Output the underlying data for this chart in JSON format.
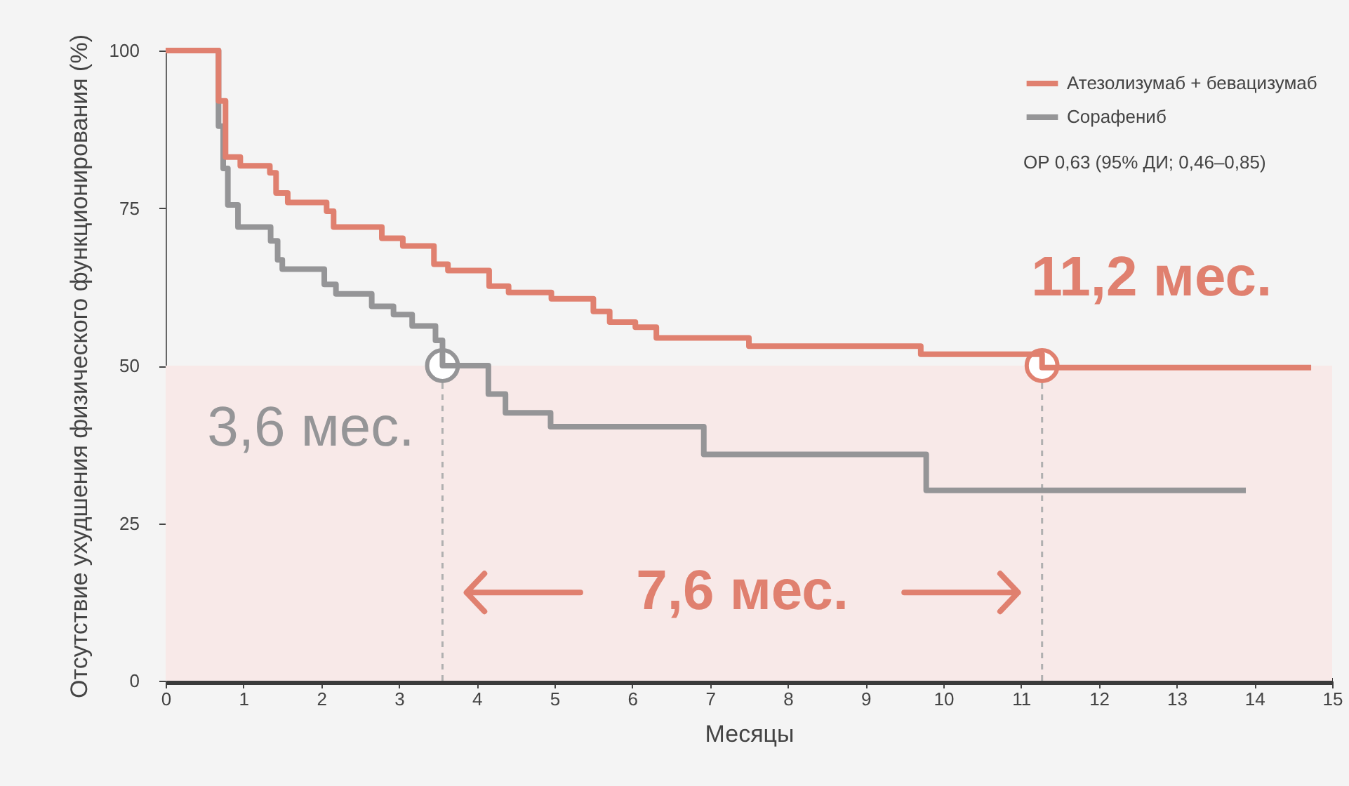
{
  "chart_data": {
    "type": "step",
    "xlabel": "Месяцы",
    "ylabel": "Отсутствие ухудшения физического функционирования (%)",
    "xlim": [
      0,
      15
    ],
    "xticks": [
      0,
      1,
      2,
      3,
      4,
      5,
      6,
      7,
      8,
      9,
      10,
      11,
      12,
      13,
      14,
      15
    ],
    "ylim": [
      0,
      100
    ],
    "yticks": [
      0,
      25,
      50,
      75,
      100
    ],
    "grid": false,
    "legend": "top right",
    "line_style": "solid",
    "marker": "none",
    "series": [
      {
        "name": "Атезолизумаб + бевацизумаб",
        "color": "#e0806f",
        "x": [
          0,
          0.68,
          0.77,
          0.96,
          1.34,
          1.42,
          1.57,
          2.07,
          2.16,
          2.78,
          3.05,
          3.45,
          3.63,
          4.16,
          4.41,
          4.96,
          5.5,
          5.71,
          6.04,
          6.31,
          7.5,
          9.71,
          11.27,
          14.73
        ],
        "values": [
          100,
          92,
          83.1,
          81.7,
          80.6,
          77.4,
          75.9,
          74.5,
          72,
          70.2,
          69,
          66.1,
          65.1,
          62.6,
          61.6,
          60.6,
          58.6,
          56.9,
          56.1,
          54.4,
          53.1,
          51.8,
          49.7,
          49.7
        ]
      },
      {
        "name": "Сорафениб",
        "color": "#959597",
        "x": [
          0,
          0.68,
          0.74,
          0.8,
          0.93,
          1.35,
          1.44,
          1.5,
          2.04,
          2.19,
          2.65,
          2.93,
          3.17,
          3.47,
          3.56,
          4.15,
          4.37,
          4.95,
          6.92,
          9.78,
          13.89
        ],
        "values": [
          100,
          88,
          81.3,
          75.5,
          72,
          69.8,
          66.8,
          65.3,
          62.9,
          61.4,
          59.4,
          58.1,
          56.3,
          54,
          50,
          45.5,
          42.5,
          40.3,
          35.9,
          30.2,
          30.2
        ]
      }
    ],
    "bands": [
      {
        "axis": "y",
        "from": 0,
        "to": 50,
        "color": "#f8e9e8"
      }
    ],
    "ref_lines": [
      {
        "axis": "x",
        "value": 3.56,
        "color": "#b0b0b0",
        "line_style": "dashed"
      },
      {
        "axis": "x",
        "value": 11.27,
        "color": "#b0b0b0",
        "line_style": "dashed"
      }
    ],
    "annotations": [
      {
        "text": "3,6 мес.",
        "x": 3.56,
        "y": 50
      },
      {
        "text": "11,2 мес.",
        "x": 11.27,
        "y": 50
      },
      "7,6 мес.",
      "ОР 0,63 (95% ДИ; 0,46–0,85)"
    ]
  }
}
